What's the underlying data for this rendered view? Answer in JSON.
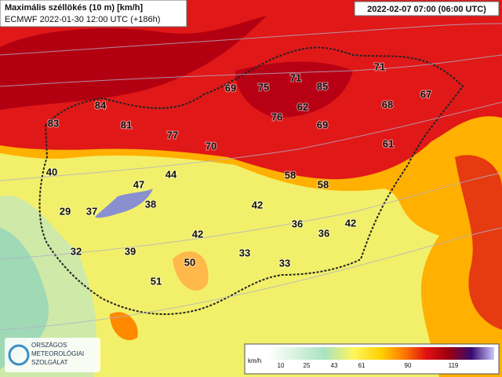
{
  "header": {
    "title": "Maximális széllökés (10 m) [km/h]",
    "model_run": "ECMWF 2022-01-30 12:00 UTC (+186h)",
    "valid_time": "2022-02-07 07:00 (06:00 UTC)"
  },
  "stations": [
    83,
    84,
    81,
    77,
    70,
    69,
    75,
    71,
    85,
    62,
    76,
    69,
    71,
    68,
    67,
    61,
    40,
    47,
    44,
    38,
    37,
    29,
    58,
    58,
    42,
    42,
    36,
    36,
    42,
    32,
    39,
    50,
    33,
    33,
    51
  ],
  "legend": {
    "unit": "km/h",
    "ticks": [
      10,
      25,
      43,
      61,
      90,
      119
    ]
  },
  "logo": {
    "lines": [
      "ORSZÁGOS",
      "METEOROLÓGIAI",
      "SZOLGÁLAT"
    ]
  }
}
